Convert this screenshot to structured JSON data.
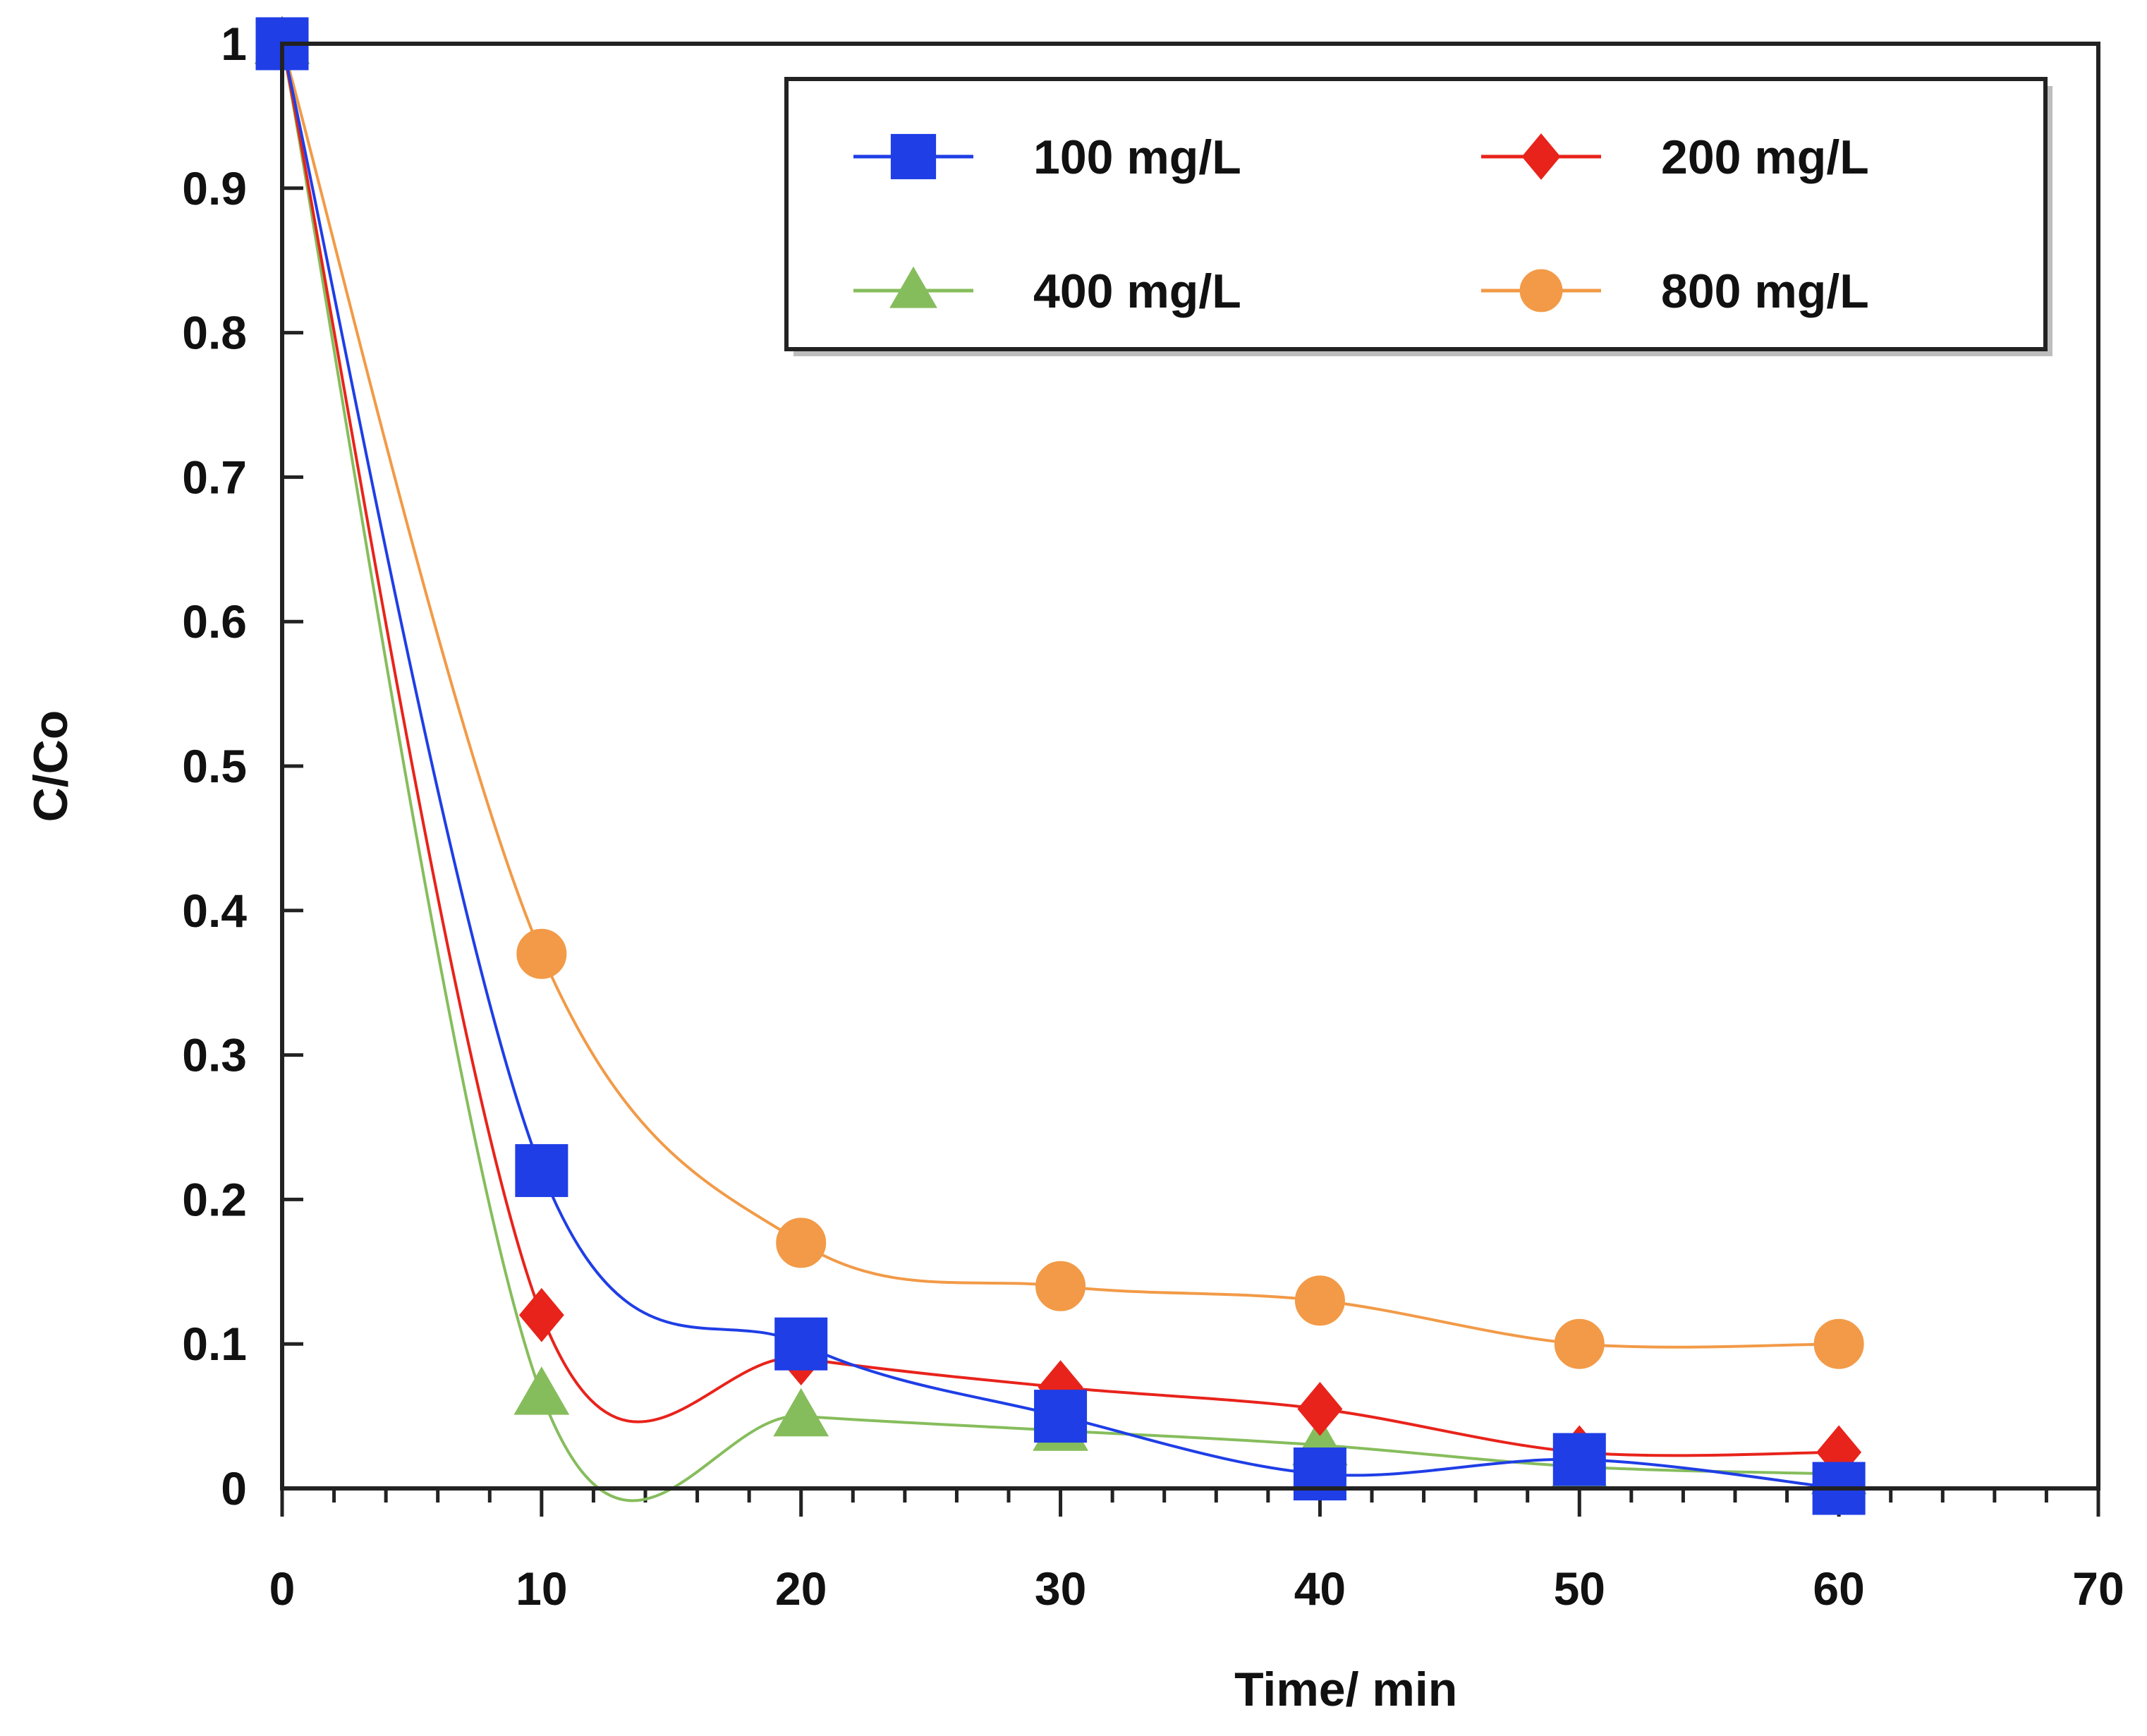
{
  "chart_data": {
    "type": "line",
    "xlabel": "Time/ min",
    "ylabel": "C/Co",
    "xlim": [
      0,
      70
    ],
    "ylim": [
      0,
      1
    ],
    "x_ticks": [
      "0",
      "10",
      "20",
      "30",
      "40",
      "50",
      "60",
      "70"
    ],
    "y_ticks": [
      "0",
      "0.1",
      "0.2",
      "0.3",
      "0.4",
      "0.5",
      "0.6",
      "0.7",
      "0.8",
      "0.9",
      "1"
    ],
    "x": [
      0,
      10,
      20,
      30,
      40,
      50,
      60
    ],
    "grid": false,
    "legend_position": "top-right",
    "smoothed": true,
    "series": [
      {
        "name": "100 mg/L",
        "values": [
          1.0,
          0.22,
          0.1,
          0.05,
          0.01,
          0.02,
          0.0
        ],
        "color": "#1f3ee6",
        "marker": "square"
      },
      {
        "name": "200 mg/L",
        "values": [
          1.0,
          0.12,
          0.09,
          0.07,
          0.055,
          0.025,
          0.025
        ],
        "color": "#e8231b",
        "marker": "diamond"
      },
      {
        "name": "400 mg/L",
        "values": [
          1.0,
          0.065,
          0.05,
          0.04,
          0.03,
          0.015,
          0.01
        ],
        "color": "#86bd5c",
        "marker": "triangle"
      },
      {
        "name": "800 mg/L",
        "values": [
          1.0,
          0.37,
          0.17,
          0.14,
          0.13,
          0.1,
          0.1
        ],
        "color": "#f29a47",
        "marker": "circle"
      }
    ]
  }
}
